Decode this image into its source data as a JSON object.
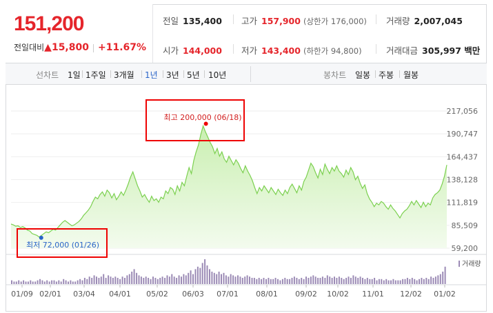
{
  "quote": {
    "price": "151,200",
    "change_label": "전일대비",
    "change_arrow": "▲",
    "change_value": "15,800",
    "change_pct": "+11.67%",
    "prev_close": {
      "label": "전일",
      "value": "135,400"
    },
    "high": {
      "label": "고가",
      "value": "157,900",
      "limit_label": "(상한가 176,000)"
    },
    "volume": {
      "label": "거래량",
      "value": "2,007,045"
    },
    "open": {
      "label": "시가",
      "value": "144,000"
    },
    "low": {
      "label": "저가",
      "value": "143,400",
      "limit_label": "(하한가 94,800)"
    },
    "amount": {
      "label": "거래대금",
      "value": "305,997 백만"
    }
  },
  "toolbar": {
    "line_chart_title": "선차트",
    "periods": [
      "1일",
      "1주일",
      "3개월",
      "1년",
      "3년",
      "5년",
      "10년"
    ],
    "active_period": "1년",
    "candle_chart_title": "봉차트",
    "candle_periods": [
      "일봉",
      "주봉",
      "월봉"
    ]
  },
  "colors": {
    "up_red": "#e5252b",
    "active_blue": "#2a64c8",
    "line_green": "#7bd04f",
    "area_green": "#dff5cf",
    "volume_purple": "#9b8ab5"
  },
  "chart_data": {
    "type": "area",
    "y_ticks": [
      "217,056",
      "190,747",
      "164,437",
      "138,128",
      "111,819",
      "85,509",
      "59,200"
    ],
    "ylim": [
      59200,
      217056
    ],
    "x_ticks": [
      "01/09",
      "02/01",
      "03/04",
      "04/01",
      "05/02",
      "06/03",
      "07/01",
      "08/01",
      "09/02",
      "10/02",
      "11/01",
      "12/02",
      "01/02"
    ],
    "max_annotation": "최고 200,000 (06/18)",
    "min_annotation": "최저 72,000 (01/26)",
    "max": {
      "x": "06/18",
      "y": 200000
    },
    "min": {
      "x": "01/26",
      "y": 72000
    },
    "volume_legend": "거래량",
    "series": [
      {
        "values": [
          87000,
          86000,
          84500,
          85000,
          83000,
          84000,
          82500,
          80000,
          79000,
          76000,
          75000,
          74000,
          72000,
          74000,
          76000,
          78000,
          77000,
          79000,
          81000,
          80000,
          83000,
          86000,
          89000,
          91000,
          89000,
          87000,
          85000,
          86000,
          88000,
          90000,
          93000,
          97000,
          100000,
          103000,
          107000,
          113000,
          118000,
          116000,
          121000,
          124000,
          119000,
          126000,
          123000,
          117000,
          122000,
          115000,
          119000,
          124000,
          120000,
          126000,
          133000,
          141000,
          147000,
          139000,
          131000,
          125000,
          118000,
          121000,
          116000,
          112000,
          119000,
          114000,
          116000,
          112000,
          118000,
          116000,
          125000,
          122000,
          129000,
          127000,
          121000,
          131000,
          125000,
          135000,
          131000,
          142000,
          152000,
          145000,
          160000,
          170000,
          178000,
          190000,
          200000,
          193000,
          187000,
          181000,
          176000,
          168000,
          174000,
          165000,
          170000,
          162000,
          158000,
          165000,
          160000,
          155000,
          161000,
          157000,
          151000,
          146000,
          154000,
          148000,
          143000,
          137000,
          129000,
          122000,
          129000,
          125000,
          131000,
          127000,
          123000,
          129000,
          125000,
          121000,
          127000,
          123000,
          120000,
          126000,
          122000,
          129000,
          133000,
          128000,
          123000,
          131000,
          126000,
          136000,
          141000,
          149000,
          157000,
          153000,
          146000,
          140000,
          150000,
          144000,
          156000,
          150000,
          145000,
          152000,
          148000,
          154000,
          148000,
          145000,
          141000,
          149000,
          144000,
          152000,
          147000,
          138000,
          142000,
          134000,
          128000,
          132000,
          122000,
          116000,
          112000,
          107000,
          111000,
          109000,
          113000,
          111000,
          107000,
          104000,
          109000,
          105000,
          102000,
          98000,
          94000,
          99000,
          102000,
          104000,
          108000,
          113000,
          109000,
          114000,
          110000,
          106000,
          112000,
          107000,
          111000,
          109000,
          117000,
          121000,
          123000,
          126000,
          133000,
          142000,
          155000
        ]
      }
    ],
    "volume": [
      3,
      2,
      2,
      3,
      2,
      3,
      2,
      2,
      3,
      2,
      2,
      3,
      4,
      3,
      2,
      3,
      2,
      3,
      3,
      2,
      3,
      2,
      4,
      3,
      2,
      3,
      2,
      2,
      3,
      4,
      3,
      5,
      4,
      6,
      5,
      7,
      6,
      5,
      6,
      8,
      5,
      7,
      6,
      5,
      6,
      5,
      4,
      6,
      5,
      7,
      8,
      10,
      12,
      9,
      7,
      6,
      5,
      6,
      5,
      4,
      6,
      5,
      4,
      5,
      6,
      5,
      7,
      6,
      8,
      6,
      5,
      7,
      6,
      8,
      7,
      9,
      11,
      8,
      12,
      14,
      13,
      17,
      20,
      15,
      12,
      10,
      9,
      8,
      10,
      8,
      9,
      7,
      6,
      8,
      7,
      6,
      7,
      6,
      5,
      6,
      7,
      6,
      5,
      5,
      4,
      5,
      4,
      5,
      4,
      5,
      4,
      4,
      5,
      4,
      3,
      4,
      5,
      4,
      4,
      5,
      6,
      5,
      4,
      5,
      4,
      6,
      5,
      6,
      7,
      6,
      5,
      5,
      6,
      5,
      7,
      6,
      5,
      6,
      5,
      6,
      5,
      4,
      5,
      6,
      5,
      7,
      6,
      5,
      6,
      5,
      4,
      5,
      4,
      4,
      5,
      3,
      4,
      4,
      3,
      4,
      3,
      3,
      4,
      3,
      3,
      3,
      4,
      4,
      5,
      4,
      5,
      4,
      3,
      4,
      5,
      4,
      5,
      4,
      6,
      5,
      6,
      7,
      8,
      10,
      14
    ]
  }
}
